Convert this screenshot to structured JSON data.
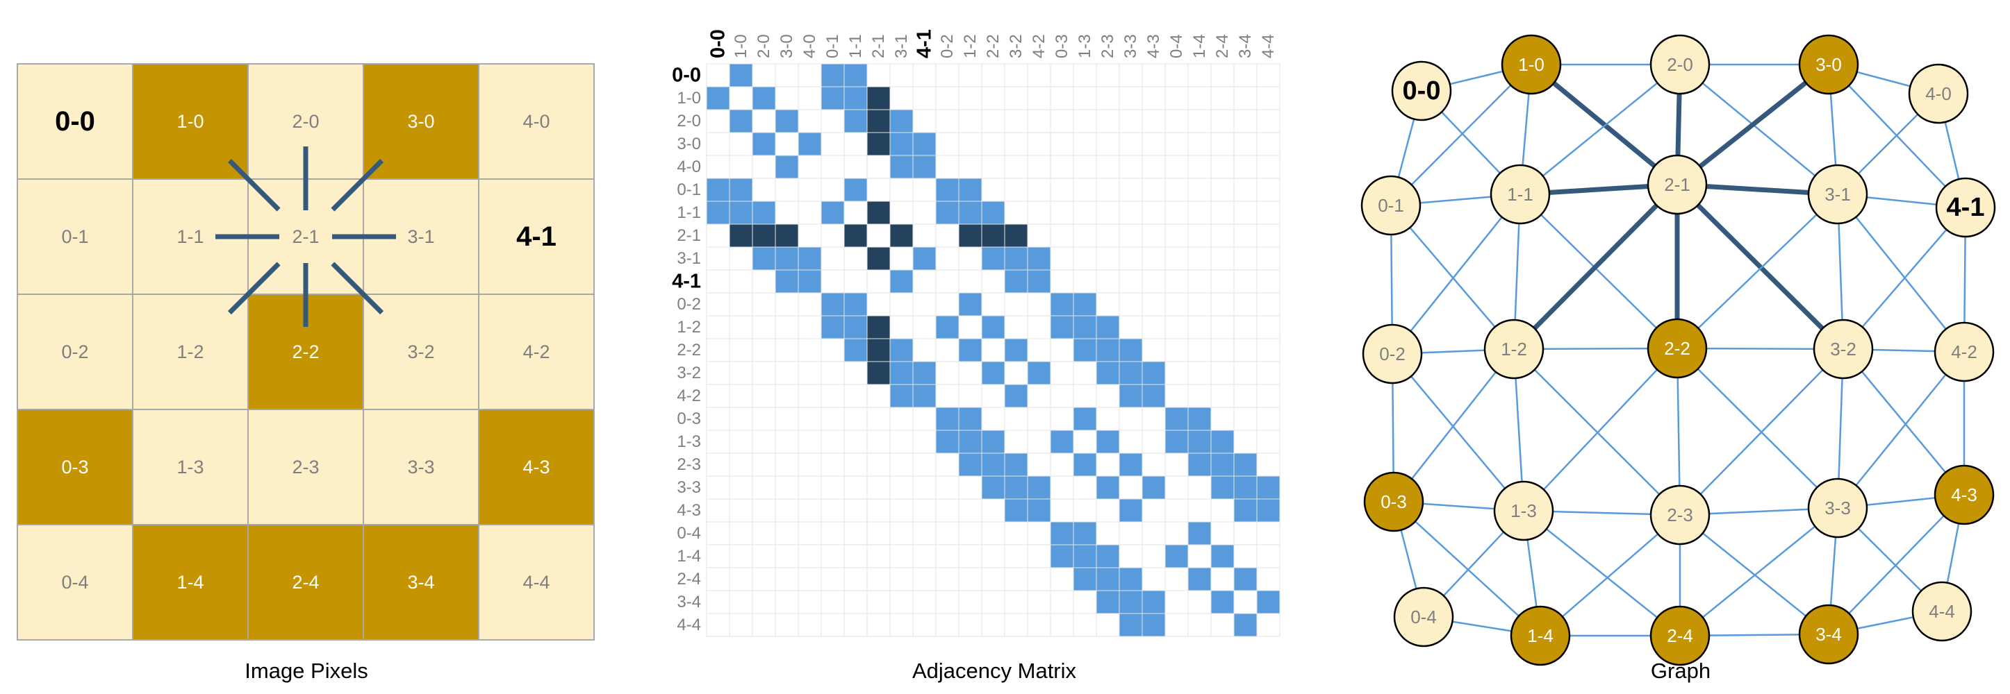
{
  "colors": {
    "pixel_light": "#fdf0c8",
    "pixel_dark": "#c49403",
    "grid_line": "#a8a8a8",
    "pixel_label_on_light": "#7f7f7f",
    "pixel_label_on_dark": "#ffffff",
    "highlight_label": "#000000",
    "matrix_fill": "#579bdc",
    "matrix_highlight": "#24425e",
    "matrix_grid": "#e3e3e3",
    "graph_edge": "#579bdc",
    "graph_edge_highlight": "#34597d",
    "node_stroke": "#000000"
  },
  "panels": {
    "pixels_caption": "Image Pixels",
    "matrix_caption": "Adjacency Matrix",
    "graph_caption": "Graph"
  },
  "labels": [
    "0-0",
    "1-0",
    "2-0",
    "3-0",
    "4-0",
    "0-1",
    "1-1",
    "2-1",
    "3-1",
    "4-1",
    "0-2",
    "1-2",
    "2-2",
    "3-2",
    "4-2",
    "0-3",
    "1-3",
    "2-3",
    "3-3",
    "4-3",
    "0-4",
    "1-4",
    "2-4",
    "3-4",
    "4-4"
  ],
  "dark_pixels": [
    "1-0",
    "3-0",
    "2-2",
    "0-3",
    "4-3",
    "1-4",
    "2-4",
    "3-4"
  ],
  "bold_labels": [
    "0-0",
    "4-1"
  ],
  "focus_pixel": "2-1",
  "focus_neighbors": [
    "1-0",
    "2-0",
    "3-0",
    "1-1",
    "3-1",
    "1-2",
    "2-2",
    "3-2"
  ],
  "adjacency": "8-connected pixel grid"
}
